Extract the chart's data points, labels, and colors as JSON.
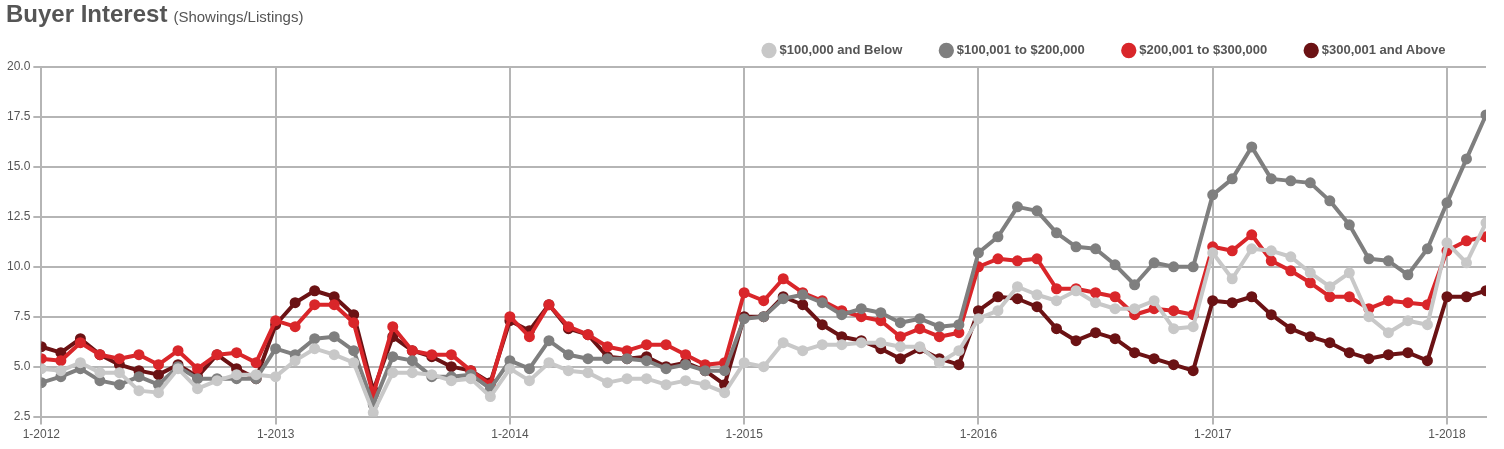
{
  "chart_data": {
    "type": "line",
    "title": "Buyer Interest",
    "subtitle": "(Showings/Listings)",
    "x": [
      "2012-01",
      "2012-02",
      "2012-03",
      "2012-04",
      "2012-05",
      "2012-06",
      "2012-07",
      "2012-08",
      "2012-09",
      "2012-10",
      "2012-11",
      "2012-12",
      "2013-01",
      "2013-02",
      "2013-03",
      "2013-04",
      "2013-05",
      "2013-06",
      "2013-07",
      "2013-08",
      "2013-09",
      "2013-10",
      "2013-11",
      "2013-12",
      "2014-01",
      "2014-02",
      "2014-03",
      "2014-04",
      "2014-05",
      "2014-06",
      "2014-07",
      "2014-08",
      "2014-09",
      "2014-10",
      "2014-11",
      "2014-12",
      "2015-01",
      "2015-02",
      "2015-03",
      "2015-04",
      "2015-05",
      "2015-06",
      "2015-07",
      "2015-08",
      "2015-09",
      "2015-10",
      "2015-11",
      "2015-12",
      "2016-01",
      "2016-02",
      "2016-03",
      "2016-04",
      "2016-05",
      "2016-06",
      "2016-07",
      "2016-08",
      "2016-09",
      "2016-10",
      "2016-11",
      "2016-12",
      "2017-01",
      "2017-02",
      "2017-03",
      "2017-04",
      "2017-05",
      "2017-06",
      "2017-07",
      "2017-08",
      "2017-09",
      "2017-10",
      "2017-11",
      "2017-12",
      "2018-01",
      "2018-02",
      "2018-03"
    ],
    "series": [
      {
        "name": "$100,000 and Below",
        "color": "#c8c8c8",
        "values": [
          4.9,
          4.8,
          5.2,
          4.7,
          4.7,
          3.8,
          3.7,
          4.9,
          3.9,
          4.3,
          4.6,
          4.6,
          4.5,
          5.3,
          5.9,
          5.6,
          5.2,
          2.7,
          4.7,
          4.7,
          4.6,
          4.3,
          4.4,
          3.5,
          4.9,
          4.3,
          5.2,
          4.8,
          4.7,
          4.2,
          4.4,
          4.4,
          4.1,
          4.3,
          4.1,
          3.7,
          5.2,
          5.0,
          6.2,
          5.8,
          6.1,
          6.1,
          6.2,
          6.2,
          6.0,
          6.0,
          5.2,
          5.8,
          7.4,
          7.8,
          9.0,
          8.6,
          8.3,
          8.8,
          8.2,
          7.9,
          7.9,
          8.3,
          6.9,
          7.0,
          10.7,
          9.4,
          10.9,
          10.8,
          10.5,
          9.7,
          9.0,
          9.7,
          7.5,
          6.7,
          7.3,
          7.1,
          11.2,
          10.2,
          12.2
        ]
      },
      {
        "name": "$100,001 to $200,000",
        "color": "#7f7f7f",
        "values": [
          4.2,
          4.5,
          4.9,
          4.3,
          4.1,
          4.5,
          4.1,
          5.0,
          4.4,
          4.4,
          4.4,
          4.4,
          5.9,
          5.6,
          6.4,
          6.5,
          5.8,
          3.1,
          5.5,
          5.3,
          4.5,
          4.5,
          4.6,
          3.9,
          5.3,
          4.9,
          6.3,
          5.6,
          5.4,
          5.4,
          5.4,
          5.3,
          4.9,
          5.1,
          4.8,
          4.8,
          7.4,
          7.5,
          8.4,
          8.6,
          8.2,
          7.6,
          7.9,
          7.7,
          7.2,
          7.4,
          7.0,
          7.1,
          10.7,
          11.5,
          13.0,
          12.8,
          11.7,
          11.0,
          10.9,
          10.1,
          9.1,
          10.2,
          10.0,
          10.0,
          13.6,
          14.4,
          16.0,
          14.4,
          14.3,
          14.2,
          13.3,
          12.1,
          10.4,
          10.3,
          9.6,
          10.9,
          13.2,
          15.4,
          17.6
        ]
      },
      {
        "name": "$200,001 to $300,000",
        "color": "#d9262a",
        "values": [
          5.4,
          5.3,
          6.2,
          5.6,
          5.4,
          5.6,
          5.1,
          5.8,
          4.9,
          5.6,
          5.7,
          5.2,
          7.3,
          7.0,
          8.1,
          8.1,
          7.2,
          3.6,
          7.0,
          5.8,
          5.6,
          5.6,
          4.8,
          4.1,
          7.5,
          6.5,
          8.1,
          7.0,
          6.6,
          6.0,
          5.8,
          6.1,
          6.1,
          5.6,
          5.1,
          5.2,
          8.7,
          8.3,
          9.4,
          8.7,
          8.3,
          7.8,
          7.5,
          7.3,
          6.5,
          6.9,
          6.5,
          6.7,
          10.0,
          10.4,
          10.3,
          10.4,
          8.9,
          8.9,
          8.7,
          8.5,
          7.6,
          7.9,
          7.8,
          7.6,
          11.0,
          10.8,
          11.6,
          10.3,
          9.8,
          9.2,
          8.5,
          8.5,
          7.9,
          8.3,
          8.2,
          8.1,
          10.8,
          11.3,
          11.5
        ]
      },
      {
        "name": "$300,001 and Above",
        "color": "#6b1214",
        "values": [
          6.0,
          5.7,
          6.4,
          5.6,
          5.1,
          4.8,
          4.6,
          5.1,
          4.5,
          5.6,
          4.9,
          4.4,
          7.1,
          8.2,
          8.8,
          8.5,
          7.6,
          3.8,
          6.5,
          5.8,
          5.5,
          5.0,
          4.8,
          4.2,
          7.3,
          6.8,
          8.1,
          6.9,
          6.6,
          5.5,
          5.4,
          5.5,
          5.0,
          5.2,
          4.8,
          4.1,
          7.5,
          7.5,
          8.5,
          8.1,
          7.1,
          6.5,
          6.3,
          5.9,
          5.4,
          5.9,
          5.4,
          5.1,
          7.8,
          8.5,
          8.4,
          8.0,
          6.9,
          6.3,
          6.7,
          6.4,
          5.7,
          5.4,
          5.1,
          4.8,
          8.3,
          8.2,
          8.5,
          7.6,
          6.9,
          6.5,
          6.2,
          5.7,
          5.4,
          5.6,
          5.7,
          5.3,
          8.5,
          8.5,
          8.8
        ]
      }
    ],
    "xlim": [
      "2012-01",
      "2018-03"
    ],
    "xticks": [
      {
        "value": "2012-01",
        "label": "1-2012"
      },
      {
        "value": "2013-01",
        "label": "1-2013"
      },
      {
        "value": "2014-01",
        "label": "1-2014"
      },
      {
        "value": "2015-01",
        "label": "1-2015"
      },
      {
        "value": "2016-01",
        "label": "1-2016"
      },
      {
        "value": "2017-01",
        "label": "1-2017"
      },
      {
        "value": "2018-01",
        "label": "1-2018"
      }
    ],
    "ylim": [
      2.5,
      20
    ],
    "yticks": [
      2.5,
      {
        "value": 5,
        "label": "5.0"
      },
      7.5,
      {
        "value": 10,
        "label": "10.0"
      },
      12.5,
      {
        "value": 15,
        "label": "15.0"
      },
      17.5,
      {
        "value": 20,
        "label": "20.0"
      }
    ],
    "grid": true,
    "legend": "top right",
    "marker": "circle",
    "line_style": "solid"
  }
}
